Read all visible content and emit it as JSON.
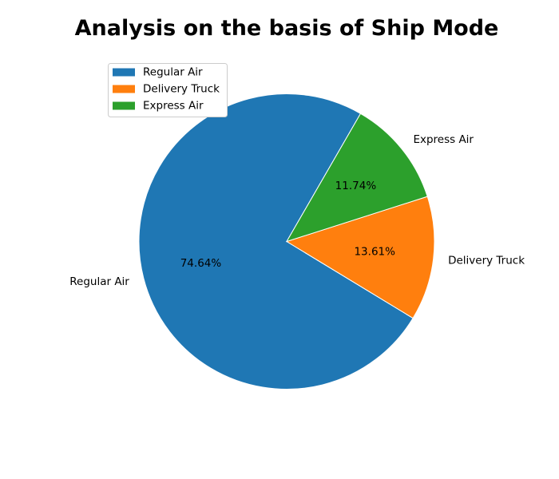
{
  "chart_data": {
    "type": "pie",
    "title": "Analysis on the basis of Ship Mode",
    "labels": [
      "Regular Air",
      "Delivery Truck",
      "Express Air"
    ],
    "values": [
      74.64,
      13.61,
      11.74
    ],
    "value_labels": [
      "74.64%",
      "13.61%",
      "11.74%"
    ],
    "colors": [
      "#1f77b4",
      "#ff7f0e",
      "#2ca02c"
    ],
    "legend": {
      "placement": "upper-left",
      "entries": [
        "Regular Air",
        "Delivery Truck",
        "Express Air"
      ]
    }
  }
}
